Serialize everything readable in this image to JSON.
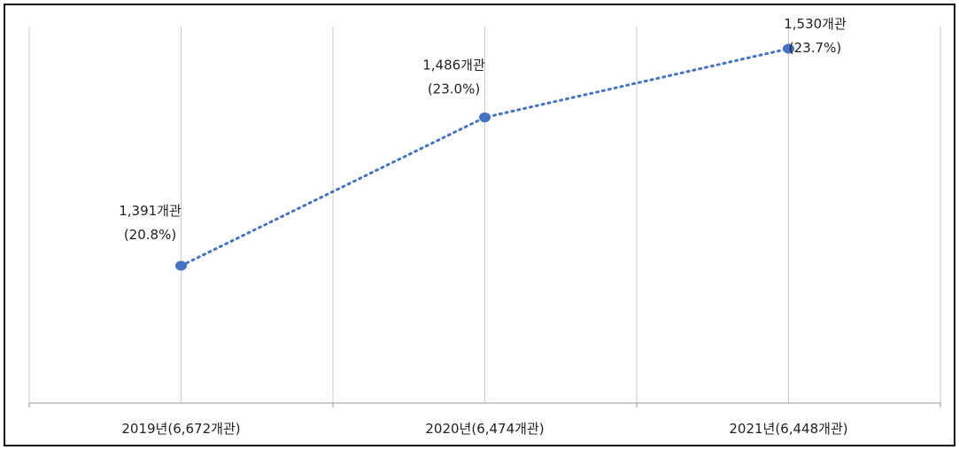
{
  "chart_data": {
    "type": "line",
    "title": "",
    "xlabel": "",
    "ylabel": "",
    "categories": [
      "2019년(6,672개관)",
      "2020년(6,474개관)",
      "2021년(6,448개관)"
    ],
    "values": [
      1391,
      1486,
      1530
    ],
    "data_labels": [
      {
        "count": "1,391개관",
        "pct": "(20.8%)"
      },
      {
        "count": "1,486개관",
        "pct": "(23.0%)"
      },
      {
        "count": "1,530개관",
        "pct": "(23.7%)"
      }
    ],
    "ylim": [
      1300,
      1550
    ],
    "grid": "vertical",
    "legend": "none",
    "line_style": "dotted",
    "colors": {
      "series": "#4472C4",
      "grid": "#c8c8c8",
      "axis": "#9a9a9a",
      "border": "#111111"
    }
  }
}
